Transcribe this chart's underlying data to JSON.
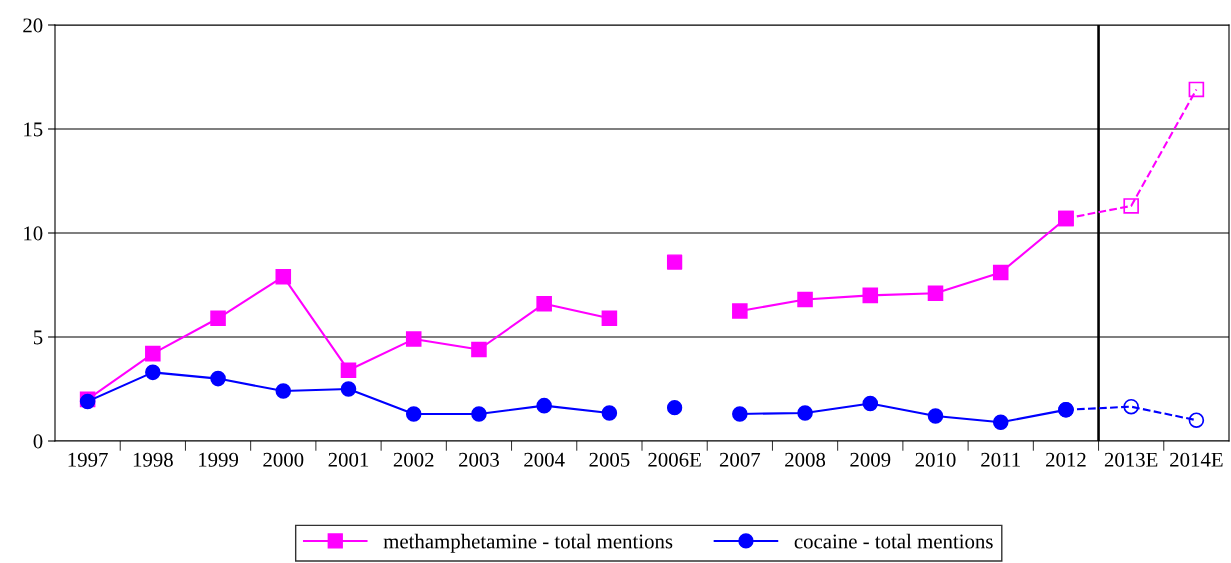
{
  "chart_data": {
    "type": "line",
    "categories": [
      "1997",
      "1998",
      "1999",
      "2000",
      "2001",
      "2002",
      "2003",
      "2004",
      "2005",
      "2006E",
      "2007",
      "2008",
      "2009",
      "2010",
      "2011",
      "2012",
      "2013E",
      "2014E"
    ],
    "series": [
      {
        "name": "methamphetamine - total mentions",
        "color": "#ff00ff",
        "marker": "square",
        "line_style": "solid",
        "values": [
          2.0,
          4.2,
          5.9,
          7.9,
          3.4,
          4.9,
          4.4,
          6.6,
          5.9,
          null,
          6.25,
          6.8,
          7.0,
          7.1,
          8.1,
          10.7,
          null,
          null
        ]
      },
      {
        "type": "scatter",
        "color": "#ff00ff",
        "marker": "square",
        "values": [
          null,
          null,
          null,
          null,
          null,
          null,
          null,
          null,
          null,
          8.6,
          null,
          null,
          null,
          null,
          null,
          null,
          null,
          null
        ]
      },
      {
        "color": "#ff00ff",
        "marker": "square",
        "line_style": "dashed",
        "values": [
          null,
          null,
          null,
          null,
          null,
          null,
          null,
          null,
          null,
          null,
          null,
          null,
          null,
          null,
          null,
          10.7,
          11.3,
          16.9
        ]
      },
      {
        "name": "cocaine - total mentions",
        "color": "#0000ff",
        "marker": "circle",
        "line_style": "solid",
        "values": [
          1.9,
          3.3,
          3.0,
          2.4,
          2.5,
          1.3,
          1.3,
          1.7,
          1.35,
          null,
          1.3,
          1.35,
          1.8,
          1.2,
          0.9,
          1.5,
          null,
          null
        ]
      },
      {
        "type": "scatter",
        "color": "#0000ff",
        "marker": "circle",
        "values": [
          null,
          null,
          null,
          null,
          null,
          null,
          null,
          null,
          null,
          1.6,
          null,
          null,
          null,
          null,
          null,
          null,
          null,
          null
        ]
      },
      {
        "color": "#0000ff",
        "marker": "circle",
        "line_style": "dashed",
        "values": [
          null,
          null,
          null,
          null,
          null,
          null,
          null,
          null,
          null,
          null,
          null,
          null,
          null,
          null,
          null,
          1.5,
          1.65,
          1.0
        ]
      }
    ],
    "ylim": [
      0,
      20
    ],
    "yticks": [
      0,
      5,
      10,
      15,
      20
    ],
    "grid": "y",
    "legend": "bottom"
  }
}
